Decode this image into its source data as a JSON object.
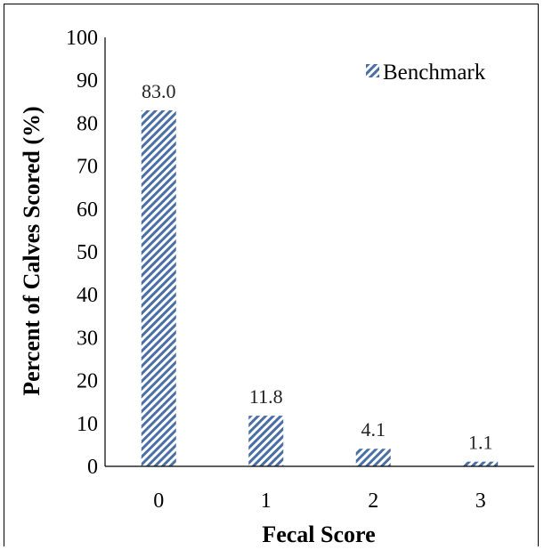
{
  "chart_data": {
    "type": "bar",
    "categories": [
      "0",
      "1",
      "2",
      "3"
    ],
    "series": [
      {
        "name": "Benchmark",
        "values": [
          83.0,
          11.8,
          4.1,
          1.1
        ],
        "labels": [
          "83.0",
          "11.8",
          "4.1",
          "1.1"
        ]
      }
    ],
    "xlabel": "Fecal Score",
    "ylabel": "Percent of Calves Scored (%)",
    "ylim": [
      0,
      100
    ],
    "yticks": [
      "0",
      "10",
      "20",
      "30",
      "40",
      "50",
      "60",
      "70",
      "80",
      "90",
      "100"
    ],
    "legend_position": "top-right",
    "bar_fill": "diagonal-hatch",
    "colors": {
      "bar": "#4a6fa5",
      "bar_light": "#ffffff",
      "axis": "#000000"
    },
    "grid": false
  }
}
